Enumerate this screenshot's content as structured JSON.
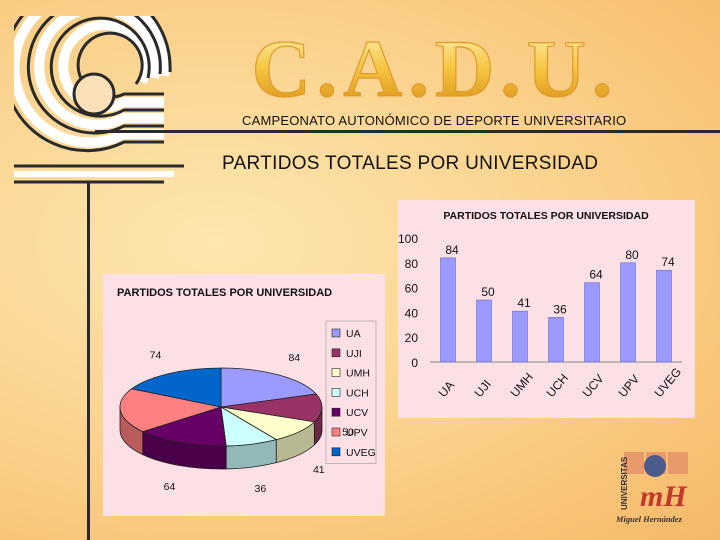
{
  "brand": {
    "title": "C.A.D.U."
  },
  "subtitle": "CAMPEONATO AUTONÓMICO DE DEPORTE UNIVERSITARIO",
  "section_title": "PARTIDOS TOTALES POR UNIVERSIDAD",
  "university_logo": {
    "vertical_text": "UNIVERSITAS",
    "name": "Miguel Hernández"
  },
  "colors": {
    "UA": "#9a9aff",
    "UJI": "#993366",
    "UMH": "#ffffcc",
    "UCH": "#ccffff",
    "UCV": "#660066",
    "UPV": "#ff8080",
    "UVEG": "#0066cc"
  },
  "chart_data": [
    {
      "type": "pie",
      "title": "PARTIDOS TOTALES POR UNIVERSIDAD",
      "categories": [
        "UA",
        "UJI",
        "UMH",
        "UCH",
        "UCV",
        "UPV",
        "UVEG"
      ],
      "values": [
        84,
        50,
        41,
        36,
        64,
        80,
        74
      ],
      "legend": "right",
      "style": "3d"
    },
    {
      "type": "bar",
      "title": "PARTIDOS TOTALES POR UNIVERSIDAD",
      "categories": [
        "UA",
        "UJI",
        "UMH",
        "UCH",
        "UCV",
        "UPV",
        "UVEG"
      ],
      "values": [
        84,
        50,
        41,
        36,
        64,
        80,
        74
      ],
      "ylim": [
        0,
        100
      ],
      "yticks": [
        "0",
        "20",
        "40",
        "60",
        "80",
        "100"
      ],
      "grid": false
    }
  ]
}
